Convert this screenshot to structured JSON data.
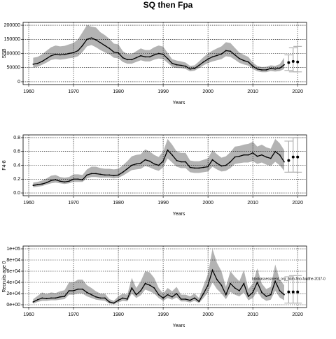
{
  "chart_data": [
    {
      "type": "band-line",
      "title": "SQ then Fpa",
      "y_label": "SSB",
      "x_label": "Years",
      "xlim": [
        1958.75,
        2022
      ],
      "xticks": [
        1960,
        1970,
        1980,
        1990,
        2000,
        2010,
        2020
      ],
      "ylim": [
        -10000,
        210000
      ],
      "yticks": [
        0,
        50000,
        100000,
        150000,
        200000
      ],
      "line_color": "#000000",
      "band_color": "#b3b3b3",
      "grid": true,
      "x": [
        1961,
        1962,
        1963,
        1964,
        1965,
        1966,
        1967,
        1968,
        1969,
        1970,
        1971,
        1972,
        1973,
        1974,
        1975,
        1976,
        1977,
        1978,
        1979,
        1980,
        1981,
        1982,
        1983,
        1984,
        1985,
        1986,
        1987,
        1988,
        1989,
        1990,
        1991,
        1992,
        1993,
        1994,
        1995,
        1996,
        1997,
        1998,
        1999,
        2000,
        2001,
        2002,
        2003,
        2004,
        2005,
        2006,
        2007,
        2008,
        2009,
        2010,
        2011,
        2012,
        2013,
        2014,
        2015,
        2016,
        2017
      ],
      "values": [
        62000,
        65000,
        72000,
        82000,
        92000,
        97000,
        95000,
        96000,
        100000,
        103000,
        110000,
        128000,
        150000,
        155000,
        148000,
        138000,
        128000,
        118000,
        105000,
        102000,
        85000,
        78000,
        78000,
        85000,
        92000,
        88000,
        88000,
        95000,
        100000,
        97000,
        82000,
        65000,
        60000,
        58000,
        55000,
        45000,
        47000,
        58000,
        70000,
        80000,
        88000,
        93000,
        98000,
        110000,
        108000,
        95000,
        82000,
        75000,
        70000,
        55000,
        45000,
        42000,
        42000,
        47000,
        45000,
        48000,
        60000
      ],
      "lower": [
        50000,
        53000,
        60000,
        68000,
        77000,
        80000,
        78000,
        80000,
        83000,
        85000,
        90000,
        105000,
        125000,
        130000,
        122000,
        112000,
        104000,
        97000,
        85000,
        83000,
        70000,
        64000,
        64000,
        70000,
        76000,
        72000,
        72000,
        78000,
        82000,
        80000,
        67000,
        53000,
        49000,
        48000,
        45000,
        37000,
        39000,
        48000,
        58000,
        66000,
        72000,
        76000,
        80000,
        90000,
        88000,
        78000,
        67000,
        61000,
        57000,
        45000,
        37000,
        34000,
        34000,
        38000,
        36000,
        38000,
        45000
      ],
      "upper": [
        85000,
        88000,
        97000,
        110000,
        122000,
        128000,
        125000,
        127000,
        132000,
        137000,
        150000,
        175000,
        200000,
        195000,
        192000,
        175000,
        165000,
        152000,
        135000,
        132000,
        108000,
        98000,
        98000,
        108000,
        118000,
        112000,
        112000,
        122000,
        128000,
        124000,
        102000,
        80000,
        75000,
        72000,
        68000,
        56000,
        58000,
        72000,
        87000,
        100000,
        110000,
        118000,
        125000,
        140000,
        137000,
        120000,
        103000,
        95000,
        88000,
        68000,
        56000,
        52000,
        53000,
        58000,
        56000,
        62000,
        85000
      ],
      "projection": {
        "x": [
          2018,
          2019,
          2020
        ],
        "values": [
          68000,
          72000,
          70000
        ],
        "lower": [
          40000,
          35000,
          35000
        ],
        "upper": [
          95000,
          120000,
          125000
        ]
      }
    },
    {
      "type": "band-line",
      "y_label": "F4-8",
      "x_label": "Years",
      "xlim": [
        1958.75,
        2022
      ],
      "xticks": [
        1960,
        1970,
        1980,
        1990,
        2000,
        2010,
        2020
      ],
      "ylim": [
        -0.04,
        0.84
      ],
      "yticks": [
        {
          "value": 0,
          "label": "0.0"
        },
        0.2,
        0.4,
        0.6,
        0.8
      ],
      "line_color": "#000000",
      "band_color": "#b3b3b3",
      "grid": true,
      "x": [
        1961,
        1962,
        1963,
        1964,
        1965,
        1966,
        1967,
        1968,
        1969,
        1970,
        1971,
        1972,
        1973,
        1974,
        1975,
        1976,
        1977,
        1978,
        1979,
        1980,
        1981,
        1982,
        1983,
        1984,
        1985,
        1986,
        1987,
        1988,
        1989,
        1990,
        1991,
        1992,
        1993,
        1994,
        1995,
        1996,
        1997,
        1998,
        1999,
        2000,
        2001,
        2002,
        2003,
        2004,
        2005,
        2006,
        2007,
        2008,
        2009,
        2010,
        2011,
        2012,
        2013,
        2014,
        2015,
        2016,
        2017
      ],
      "values": [
        0.11,
        0.12,
        0.13,
        0.15,
        0.18,
        0.19,
        0.17,
        0.16,
        0.17,
        0.2,
        0.2,
        0.19,
        0.26,
        0.28,
        0.28,
        0.27,
        0.26,
        0.26,
        0.25,
        0.26,
        0.3,
        0.35,
        0.4,
        0.42,
        0.43,
        0.48,
        0.46,
        0.42,
        0.4,
        0.46,
        0.62,
        0.55,
        0.47,
        0.45,
        0.45,
        0.37,
        0.36,
        0.36,
        0.37,
        0.38,
        0.48,
        0.43,
        0.39,
        0.4,
        0.45,
        0.52,
        0.53,
        0.55,
        0.55,
        0.58,
        0.53,
        0.55,
        0.52,
        0.5,
        0.6,
        0.55,
        0.45
      ],
      "lower": [
        0.08,
        0.09,
        0.1,
        0.12,
        0.14,
        0.15,
        0.14,
        0.13,
        0.14,
        0.16,
        0.16,
        0.16,
        0.21,
        0.23,
        0.23,
        0.22,
        0.22,
        0.22,
        0.21,
        0.22,
        0.25,
        0.29,
        0.33,
        0.34,
        0.35,
        0.39,
        0.37,
        0.34,
        0.32,
        0.37,
        0.5,
        0.44,
        0.38,
        0.36,
        0.36,
        0.3,
        0.29,
        0.29,
        0.3,
        0.31,
        0.38,
        0.34,
        0.31,
        0.32,
        0.36,
        0.42,
        0.43,
        0.44,
        0.44,
        0.46,
        0.42,
        0.44,
        0.41,
        0.39,
        0.45,
        0.4,
        0.32
      ],
      "upper": [
        0.15,
        0.16,
        0.18,
        0.21,
        0.25,
        0.26,
        0.23,
        0.22,
        0.23,
        0.27,
        0.27,
        0.26,
        0.34,
        0.38,
        0.38,
        0.36,
        0.35,
        0.35,
        0.34,
        0.35,
        0.4,
        0.46,
        0.53,
        0.55,
        0.56,
        0.63,
        0.6,
        0.55,
        0.52,
        0.6,
        0.78,
        0.7,
        0.6,
        0.58,
        0.58,
        0.47,
        0.46,
        0.46,
        0.48,
        0.5,
        0.62,
        0.56,
        0.51,
        0.53,
        0.59,
        0.67,
        0.68,
        0.7,
        0.71,
        0.74,
        0.67,
        0.7,
        0.66,
        0.64,
        0.78,
        0.72,
        0.62
      ],
      "projection": {
        "x": [
          2018,
          2019,
          2020
        ],
        "values": [
          0.47,
          0.52,
          0.52
        ],
        "lower": [
          0.3,
          0.3,
          0.3
        ],
        "upper": [
          0.75,
          0.8,
          0.8
        ]
      }
    },
    {
      "type": "band-line",
      "y_label": "Recruits age 0",
      "x_label": "Years",
      "annotation": "blockassessment_org_nam-fmo-fualthe-2017-0",
      "xlim": [
        1958.75,
        2022
      ],
      "xticks": [
        1960,
        1970,
        1980,
        1990,
        2000,
        2010,
        2020
      ],
      "ylim": [
        -5000,
        105000
      ],
      "yticks": [
        {
          "value": 0,
          "label": "0e+00"
        },
        {
          "value": 20000,
          "label": "2e+04"
        },
        {
          "value": 40000,
          "label": "4e+04"
        },
        {
          "value": 60000,
          "label": "6e+04"
        },
        {
          "value": 80000,
          "label": "8e+04"
        },
        {
          "value": 100000,
          "label": "1e+05"
        }
      ],
      "line_color": "#000000",
      "band_color": "#b3b3b3",
      "grid": true,
      "x": [
        1961,
        1962,
        1963,
        1964,
        1965,
        1966,
        1967,
        1968,
        1969,
        1970,
        1971,
        1972,
        1973,
        1974,
        1975,
        1976,
        1977,
        1978,
        1979,
        1980,
        1981,
        1982,
        1983,
        1984,
        1985,
        1986,
        1987,
        1988,
        1989,
        1990,
        1991,
        1992,
        1993,
        1994,
        1995,
        1996,
        1997,
        1998,
        1999,
        2000,
        2001,
        2002,
        2003,
        2004,
        2005,
        2006,
        2007,
        2008,
        2009,
        2010,
        2011,
        2012,
        2013,
        2014,
        2015,
        2016,
        2017
      ],
      "values": [
        5000,
        9000,
        12000,
        11000,
        12000,
        12000,
        14000,
        15000,
        25000,
        25000,
        28000,
        28000,
        22000,
        18000,
        14000,
        12000,
        12000,
        5000,
        3000,
        8000,
        12000,
        10000,
        30000,
        18000,
        25000,
        38000,
        35000,
        30000,
        18000,
        12000,
        18000,
        14000,
        20000,
        10000,
        10000,
        8000,
        12000,
        6000,
        20000,
        35000,
        62000,
        45000,
        35000,
        18000,
        38000,
        30000,
        25000,
        38000,
        15000,
        22000,
        40000,
        22000,
        15000,
        18000,
        42000,
        25000,
        18000
      ],
      "lower": [
        2000,
        5000,
        7000,
        7000,
        8000,
        8000,
        9000,
        10000,
        18000,
        18000,
        20000,
        20000,
        15000,
        12000,
        9000,
        8000,
        7000,
        2000,
        1000,
        4000,
        7000,
        6000,
        20000,
        12000,
        17000,
        27000,
        24000,
        20000,
        12000,
        7000,
        12000,
        9000,
        13000,
        6000,
        6000,
        4000,
        7000,
        3000,
        12000,
        22000,
        40000,
        28000,
        20000,
        10000,
        23000,
        18000,
        15000,
        22000,
        8000,
        12000,
        24000,
        12000,
        7000,
        9000,
        25000,
        13000,
        8000
      ],
      "upper": [
        10000,
        16000,
        22000,
        19000,
        22000,
        21000,
        24000,
        26000,
        40000,
        40000,
        45000,
        45000,
        35000,
        30000,
        24000,
        20000,
        20000,
        10000,
        7000,
        15000,
        20000,
        18000,
        48000,
        30000,
        42000,
        60000,
        58000,
        48000,
        30000,
        20000,
        30000,
        24000,
        32000,
        18000,
        18000,
        15000,
        20000,
        12000,
        34000,
        55000,
        100000,
        75000,
        60000,
        32000,
        60000,
        50000,
        42000,
        62000,
        28000,
        38000,
        65000,
        38000,
        28000,
        32000,
        72000,
        45000,
        35000
      ],
      "projection": {
        "x": [
          2018,
          2019,
          2020
        ],
        "values": [
          23000,
          23000,
          23000
        ],
        "lower": [
          3000,
          3000,
          3000
        ],
        "upper": [
          50000,
          52000,
          52000
        ]
      }
    }
  ]
}
